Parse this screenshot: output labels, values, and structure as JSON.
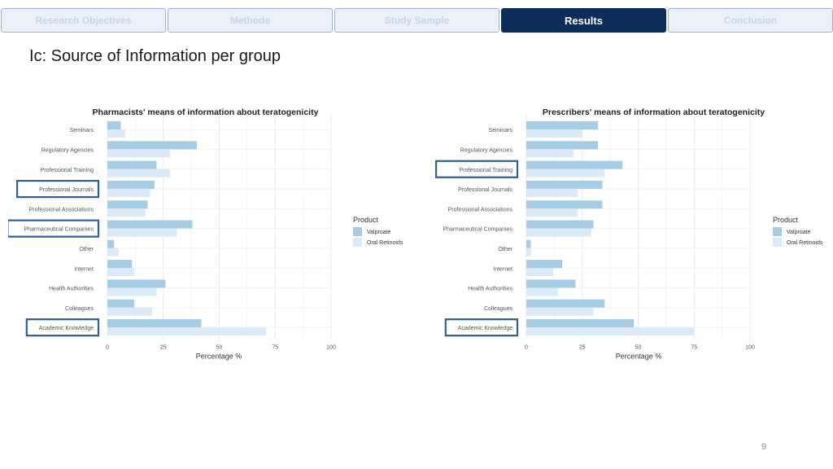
{
  "nav": {
    "tabs": [
      {
        "label": "Research Objectives"
      },
      {
        "label": "Methods"
      },
      {
        "label": "Study Sample"
      },
      {
        "label": "Results"
      },
      {
        "label": "Conclusion"
      }
    ],
    "active_index": 3
  },
  "page": {
    "title": "Ic: Source of Information per group",
    "number": "9"
  },
  "colors": {
    "valproate": "#a6cde3",
    "oral_retinoids": "#dce9f6",
    "highlight": "#2f5f95",
    "active_tab": "#0e2c5a"
  },
  "chart_data": [
    {
      "type": "bar",
      "orientation": "horizontal",
      "title": "Pharmacists' means of information about teratogenicity",
      "xlabel": "Percentage %",
      "ylabel": "",
      "xlim": [
        0,
        100
      ],
      "xticks": [
        "0",
        "25",
        "50",
        "75",
        "100"
      ],
      "categories": [
        "Seminars",
        "Regulatory Agencies",
        "Professional Training",
        "Professional Journals",
        "Professional Associations",
        "Pharmaceutical Companies",
        "Other",
        "Internet",
        "Health Authorities",
        "Colleagues",
        "Academic Knowledge"
      ],
      "highlighted": [
        "Professional Journals",
        "Pharmaceutical Companies",
        "Academic Knowledge"
      ],
      "legend_title": "Product",
      "series": [
        {
          "name": "Valproate",
          "values": [
            6,
            40,
            22,
            21,
            18,
            38,
            3,
            11,
            26,
            12,
            42
          ]
        },
        {
          "name": "Oral Retinoids",
          "values": [
            8,
            28,
            28,
            19,
            17,
            31,
            5,
            12,
            22,
            20,
            71
          ]
        }
      ]
    },
    {
      "type": "bar",
      "orientation": "horizontal",
      "title": "Prescribers' means of information about teratogenicity",
      "xlabel": "Percentage %",
      "ylabel": "",
      "xlim": [
        0,
        100
      ],
      "xticks": [
        "0",
        "25",
        "50",
        "75",
        "100"
      ],
      "categories": [
        "Seminars",
        "Regulatory Agencies",
        "Professional Training",
        "Professional Journals",
        "Professional Associations",
        "Pharmaceutical Companies",
        "Other",
        "Internet",
        "Health Authorities",
        "Colleagues",
        "Academic Knowledge"
      ],
      "highlighted": [
        "Professional Training",
        "Academic Knowledge"
      ],
      "legend_title": "Product",
      "series": [
        {
          "name": "Valproate",
          "values": [
            32,
            32,
            43,
            34,
            34,
            30,
            2,
            16,
            22,
            35,
            48
          ]
        },
        {
          "name": "Oral Retinoids",
          "values": [
            25,
            21,
            35,
            23,
            23,
            29,
            2,
            12,
            14,
            30,
            75
          ]
        }
      ]
    }
  ]
}
